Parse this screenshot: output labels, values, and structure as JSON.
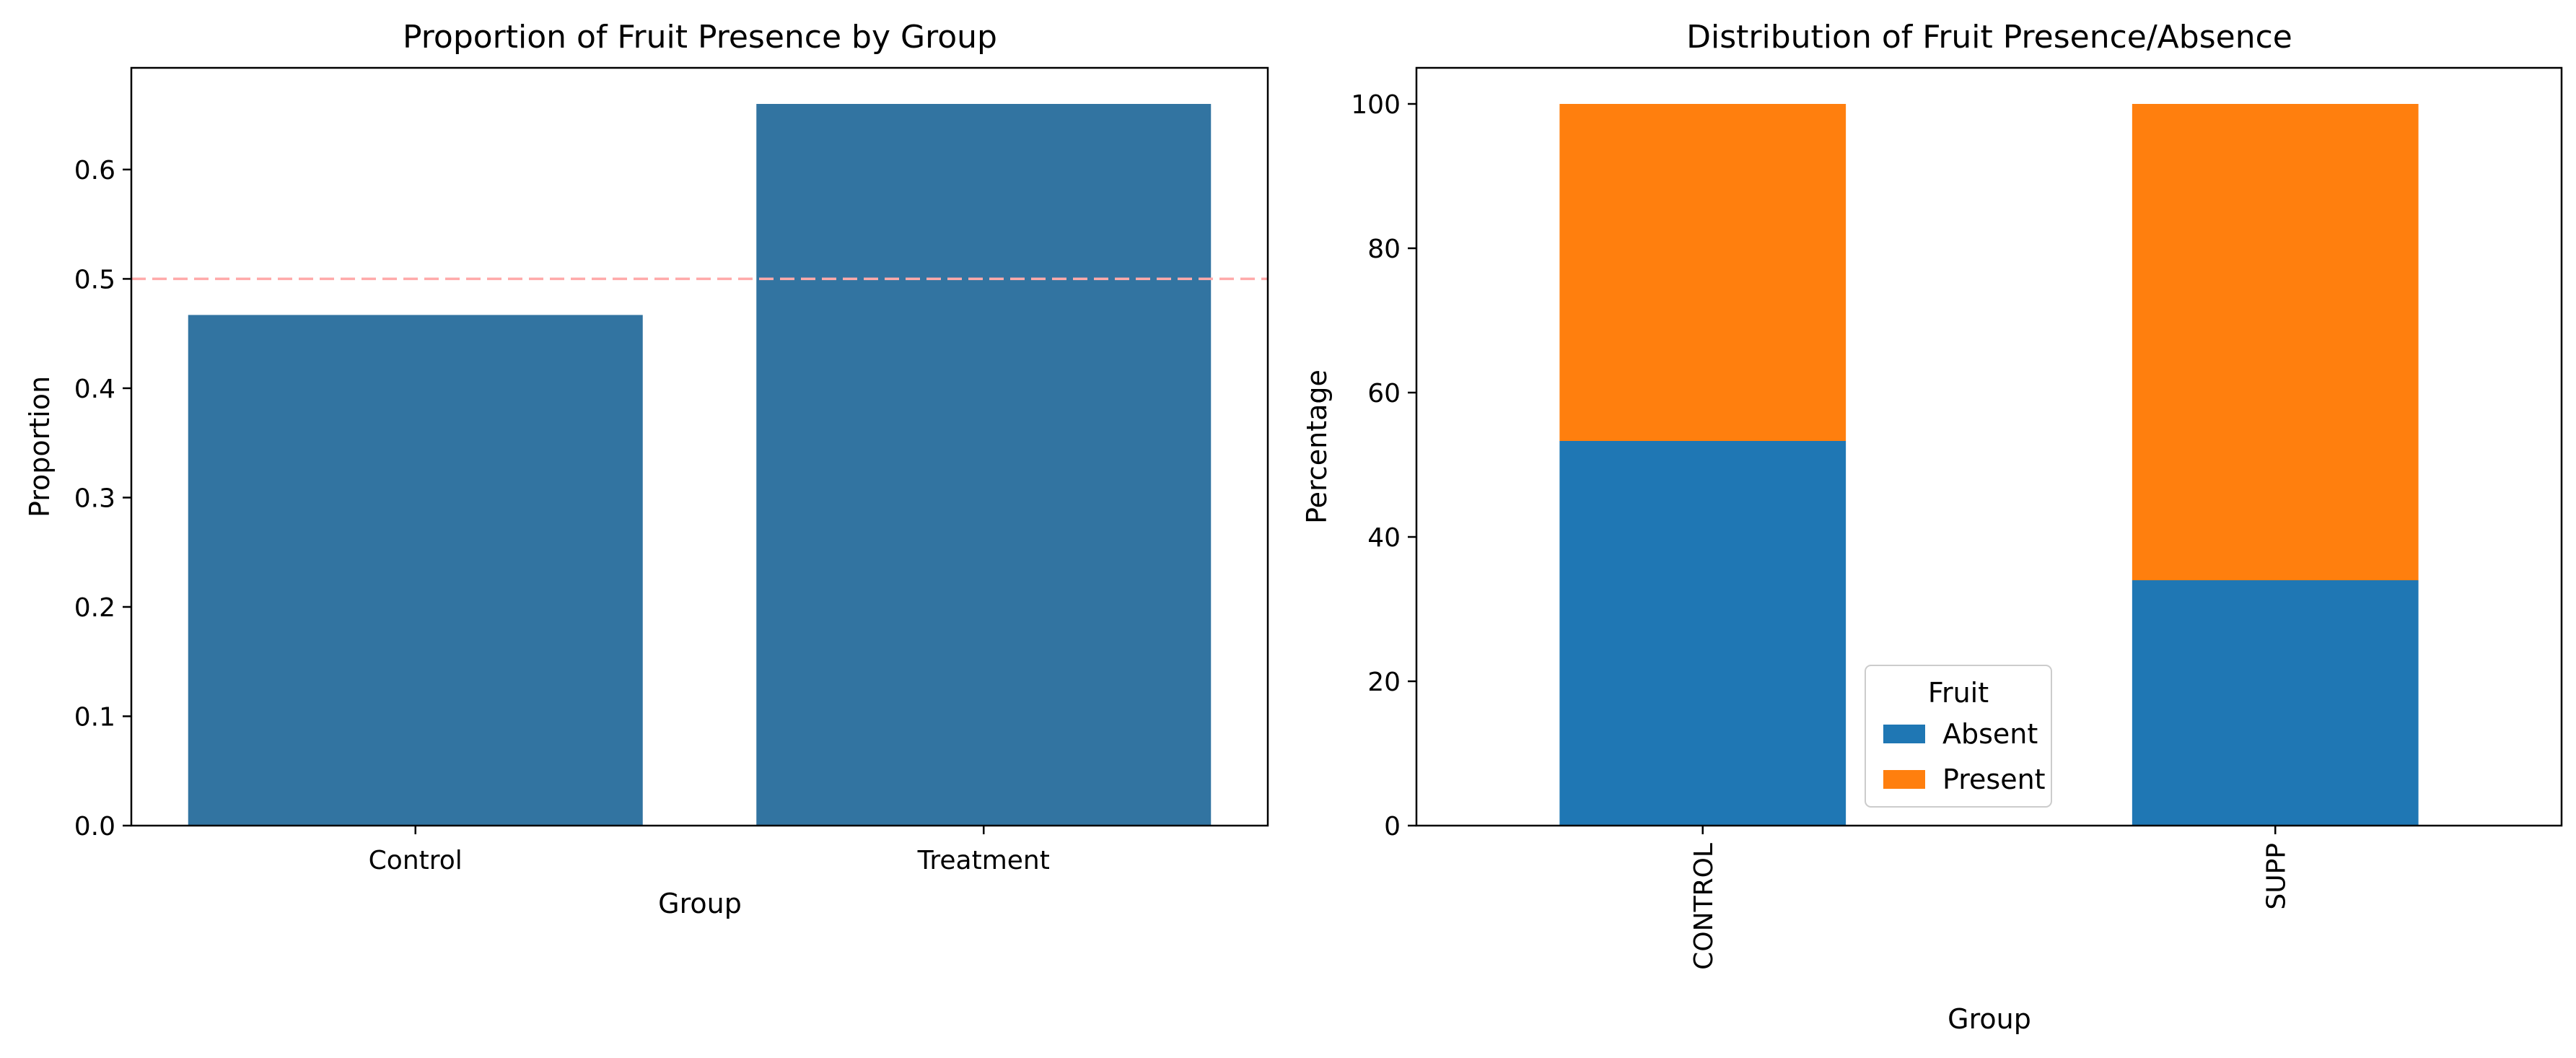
{
  "chart_data": [
    {
      "type": "bar",
      "title": "Proportion of Fruit Presence by Group",
      "xlabel": "Group",
      "ylabel": "Proportion",
      "categories": [
        "Control",
        "Treatment"
      ],
      "values": [
        0.467,
        0.66
      ],
      "ylim": [
        0,
        0.693
      ],
      "yticks": [
        "0.0",
        "0.1",
        "0.2",
        "0.3",
        "0.4",
        "0.5",
        "0.6"
      ],
      "ytick_values": [
        0,
        0.1,
        0.2,
        0.3,
        0.4,
        0.5,
        0.6
      ],
      "bar_color": "#3274a1",
      "reference_line": {
        "y": 0.5,
        "style": "dashed",
        "color": "#ffaaaa"
      },
      "grid": false
    },
    {
      "type": "bar",
      "stacked": true,
      "title": "Distribution of Fruit Presence/Absence",
      "xlabel": "Group",
      "ylabel": "Percentage",
      "categories": [
        "CONTROL",
        "SUPP"
      ],
      "series": [
        {
          "name": "Absent",
          "values": [
            53.3,
            34.0
          ],
          "color": "#1f77b4"
        },
        {
          "name": "Present",
          "values": [
            46.7,
            66.0
          ],
          "color": "#ff7f0e"
        }
      ],
      "ylim": [
        0,
        105
      ],
      "yticks": [
        "0",
        "20",
        "40",
        "60",
        "80",
        "100"
      ],
      "ytick_values": [
        0,
        20,
        40,
        60,
        80,
        100
      ],
      "legend": {
        "title": "Fruit",
        "placement": "lower-right"
      },
      "grid": false
    }
  ]
}
